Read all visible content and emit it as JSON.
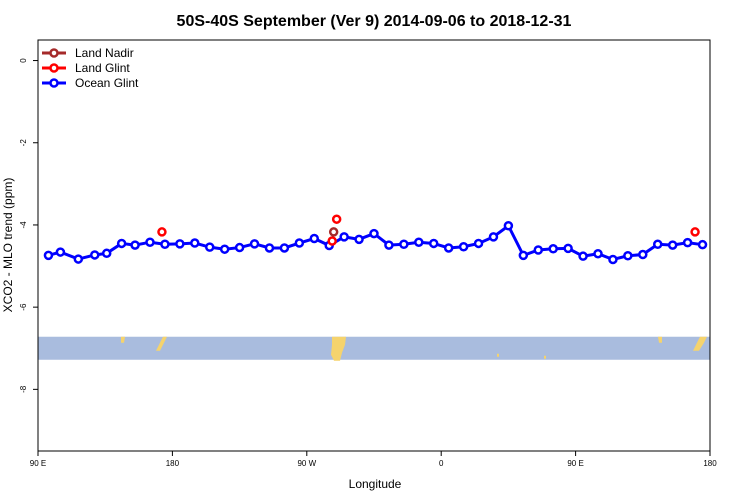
{
  "chart_data": {
    "type": "line",
    "title": "50S-40S September (Ver 9)   2014-09-06 to 2018-12-31",
    "xlabel": "Longitude",
    "ylabel": "XCO2 - MLO trend (ppm)",
    "xlim": [
      90,
      540
    ],
    "ylim": [
      -9.5,
      0.5
    ],
    "x_ticks": [
      {
        "value": 90,
        "label": "90 E"
      },
      {
        "value": 180,
        "label": "180"
      },
      {
        "value": 270,
        "label": "90 W"
      },
      {
        "value": 360,
        "label": "0"
      },
      {
        "value": 450,
        "label": "90 E"
      },
      {
        "value": 540,
        "label": "180"
      }
    ],
    "y_ticks": [
      {
        "value": 0,
        "label": "0"
      },
      {
        "value": -2,
        "label": "-2"
      },
      {
        "value": -4,
        "label": "-4"
      },
      {
        "value": -6,
        "label": "-6"
      },
      {
        "value": -8,
        "label": "-8"
      }
    ],
    "legend_position": "top-left",
    "series": [
      {
        "name": "Land Nadir",
        "color": "#a52a2a",
        "x": [
          288
        ],
        "y": [
          -4.17
        ]
      },
      {
        "name": "Land Glint",
        "color": "#ff0000",
        "x": [
          173,
          287,
          290,
          530
        ],
        "y": [
          -4.17,
          -4.39,
          -3.86,
          -4.17
        ]
      },
      {
        "name": "Ocean Glint",
        "color": "#0000ff",
        "x": [
          97,
          105,
          117,
          128,
          136,
          146,
          155,
          165,
          175,
          185,
          195,
          205,
          215,
          225,
          235,
          245,
          255,
          265,
          275,
          285,
          295,
          305,
          315,
          325,
          335,
          345,
          355,
          365,
          375,
          385,
          395,
          405,
          415,
          425,
          435,
          445,
          455,
          465,
          475,
          485,
          495,
          505,
          515,
          525,
          535
        ],
        "y": [
          -4.74,
          -4.66,
          -4.83,
          -4.73,
          -4.69,
          -4.45,
          -4.49,
          -4.42,
          -4.47,
          -4.46,
          -4.44,
          -4.54,
          -4.59,
          -4.55,
          -4.46,
          -4.56,
          -4.56,
          -4.44,
          -4.33,
          -4.5,
          -4.29,
          -4.35,
          -4.21,
          -4.49,
          -4.47,
          -4.42,
          -4.45,
          -4.56,
          -4.53,
          -4.45,
          -4.29,
          -4.02,
          -4.74,
          -4.61,
          -4.58,
          -4.57,
          -4.76,
          -4.7,
          -4.84,
          -4.75,
          -4.72,
          -4.47,
          -4.49,
          -4.43,
          -4.48
        ]
      }
    ],
    "map_strip": {
      "y_top": -6.72,
      "y_bottom": -7.28,
      "ocean_color": "#a9bcde",
      "land_color": "#f5d36d"
    }
  }
}
